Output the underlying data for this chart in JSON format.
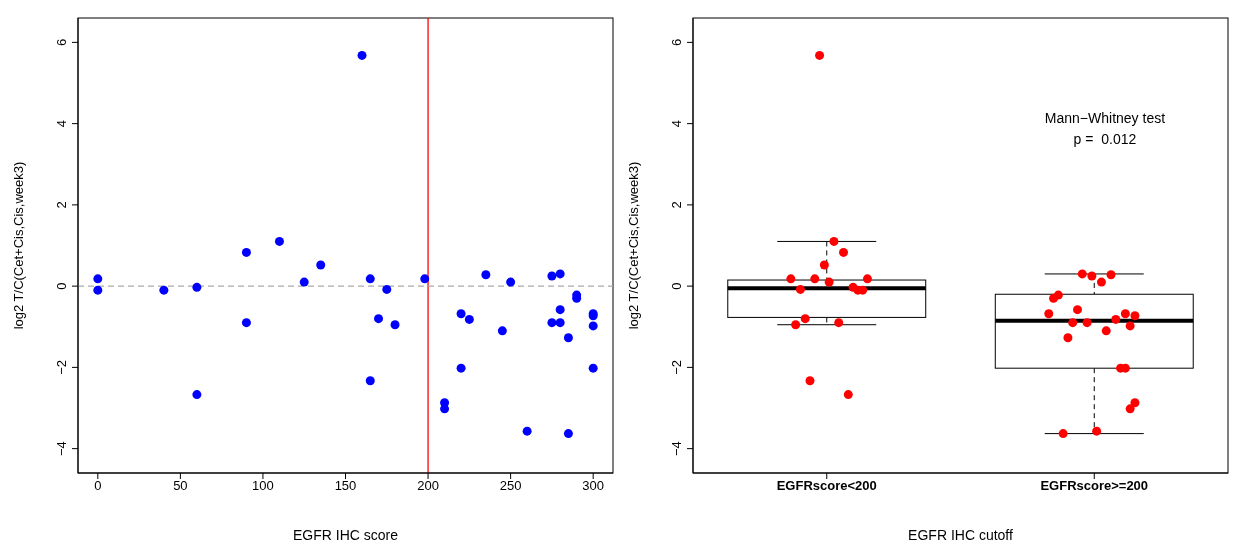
{
  "chart_data": [
    {
      "type": "scatter",
      "xlabel": "EGFR IHC score",
      "ylabel": "log2 T/C(Cet+Cis,Cis,week3)",
      "marker": "circle",
      "grid": false,
      "x": [
        0,
        0,
        40,
        60,
        60,
        90,
        90,
        110,
        125,
        135,
        160,
        165,
        165,
        170,
        175,
        180,
        198,
        210,
        210,
        220,
        220,
        225,
        235,
        245,
        250,
        260,
        275,
        275,
        280,
        280,
        280,
        285,
        285,
        290,
        290,
        300,
        300,
        300,
        300
      ],
      "values": [
        0.18,
        -0.1,
        -0.1,
        -0.03,
        -2.67,
        0.83,
        -0.9,
        1.1,
        0.1,
        0.52,
        5.68,
        0.18,
        -2.33,
        -0.8,
        -0.08,
        -0.95,
        0.18,
        -2.87,
        -3.02,
        -0.68,
        -2.02,
        -0.82,
        0.28,
        -1.1,
        0.1,
        -3.57,
        0.25,
        -0.9,
        0.3,
        -0.58,
        -0.9,
        -1.27,
        -3.63,
        -0.22,
        -0.3,
        -0.68,
        -0.73,
        -0.98,
        -2.02
      ],
      "color": "#0000ff",
      "xlim": [
        -12,
        312
      ],
      "xticks": [
        0,
        50,
        100,
        150,
        200,
        250,
        300
      ],
      "ylim": [
        -4.6,
        6.6
      ],
      "yticks": [
        -4,
        -2,
        0,
        2,
        4,
        6
      ],
      "ref_lines": [
        {
          "axis": "x",
          "value": 200,
          "color": "#ff0000",
          "line_style": "solid"
        },
        {
          "axis": "y",
          "value": 0,
          "color": "#aaaaaa",
          "line_style": "dashed"
        }
      ]
    },
    {
      "type": "box",
      "xlabel": "EGFR IHC cutoff",
      "ylabel": "log2 T/C(Cet+Cis,Cis,week3)",
      "grid": false,
      "categories": [
        "EGFRscore<200",
        "EGFRscore>=200"
      ],
      "boxes": [
        {
          "low": -0.95,
          "q1": -0.77,
          "median": -0.05,
          "q3": 0.15,
          "high": 1.1
        },
        {
          "low": -3.63,
          "q1": -2.02,
          "median": -0.85,
          "q3": -0.2,
          "high": 0.3
        }
      ],
      "series": [
        {
          "type": "scatter",
          "color": "#ff0000",
          "marker": "circle",
          "x": [
            "EGFRscore<200",
            "EGFRscore<200",
            "EGFRscore<200",
            "EGFRscore<200",
            "EGFRscore<200",
            "EGFRscore<200",
            "EGFRscore<200",
            "EGFRscore<200",
            "EGFRscore<200",
            "EGFRscore<200",
            "EGFRscore<200",
            "EGFRscore<200",
            "EGFRscore<200",
            "EGFRscore<200",
            "EGFRscore<200",
            "EGFRscore<200",
            "EGFRscore<200",
            "EGFRscore>=200",
            "EGFRscore>=200",
            "EGFRscore>=200",
            "EGFRscore>=200",
            "EGFRscore>=200",
            "EGFRscore>=200",
            "EGFRscore>=200",
            "EGFRscore>=200",
            "EGFRscore>=200",
            "EGFRscore>=200",
            "EGFRscore>=200",
            "EGFRscore>=200",
            "EGFRscore>=200",
            "EGFRscore>=200",
            "EGFRscore>=200",
            "EGFRscore>=200",
            "EGFRscore>=200",
            "EGFRscore>=200",
            "EGFRscore>=200",
            "EGFRscore>=200",
            "EGFRscore>=200",
            "EGFRscore>=200"
          ],
          "values": [
            0.18,
            -0.1,
            -0.1,
            -0.03,
            -2.67,
            0.83,
            -0.9,
            1.1,
            0.1,
            0.52,
            5.68,
            0.18,
            -2.33,
            -0.8,
            -0.08,
            -0.95,
            0.18,
            -2.87,
            -3.02,
            -0.68,
            -2.02,
            -0.82,
            0.28,
            -1.1,
            0.1,
            -3.57,
            0.25,
            -0.9,
            0.3,
            -0.58,
            -0.9,
            -1.27,
            -3.63,
            -0.22,
            -0.3,
            -0.68,
            -0.73,
            -0.98,
            -2.02
          ]
        }
      ],
      "ylim": [
        -4.6,
        6.6
      ],
      "yticks": [
        -4,
        -2,
        0,
        2,
        4,
        6
      ],
      "annotations": [
        "Mann−Whitney test",
        "p =  0.012"
      ]
    }
  ]
}
